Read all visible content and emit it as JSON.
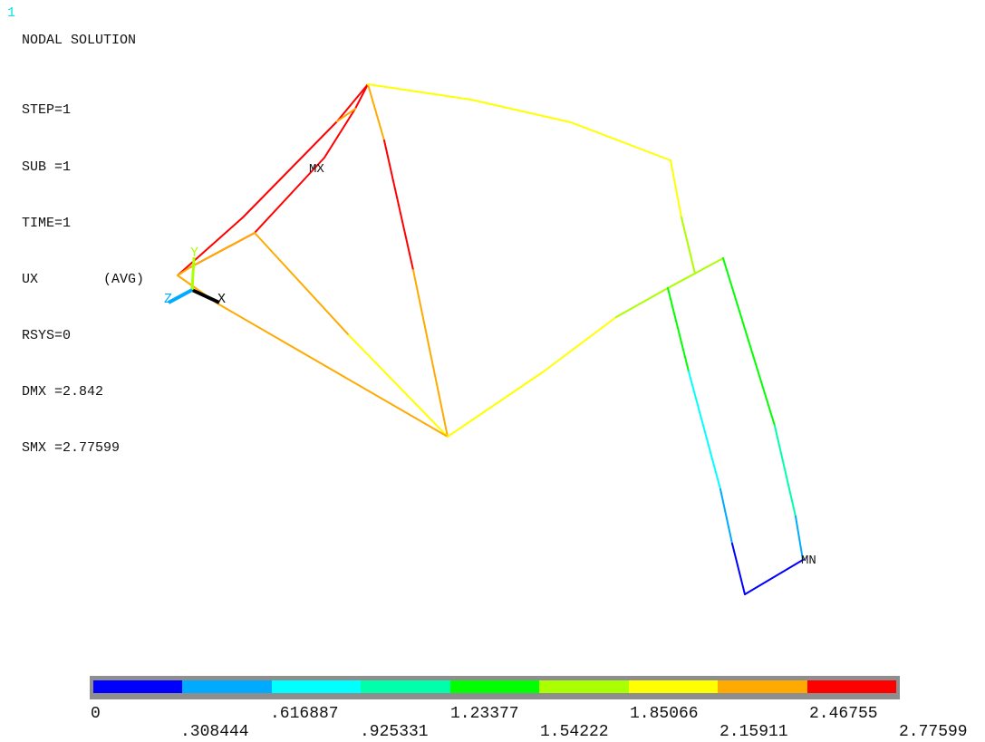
{
  "window_number": "1",
  "title": "NODAL SOLUTION",
  "info_lines": [
    "STEP=1",
    "SUB =1",
    "TIME=1",
    "UX        (AVG)",
    "RSYS=0",
    "DMX =2.842",
    "SMX =2.77599"
  ],
  "labels": {
    "max": "MX",
    "min": "MN",
    "axis_x": "X",
    "axis_y": "Y",
    "axis_z": "Z"
  },
  "legend": {
    "colors": [
      "#0000ff",
      "#00aaff",
      "#00ffff",
      "#00ffaa",
      "#00ff00",
      "#aaff00",
      "#ffff00",
      "#ffaa00",
      "#ff0000"
    ],
    "top_labels": [
      "0",
      ".616887",
      "1.23377",
      "1.85066",
      "2.46755"
    ],
    "bottom_labels": [
      ".308444",
      ".925331",
      "1.54222",
      "2.15911",
      "2.77599"
    ]
  },
  "colors": {
    "red": "#ff0000",
    "orange": "#ffaa00",
    "yellow": "#ffff00",
    "lime": "#aaff00",
    "green": "#00ff00",
    "aqua": "#00ffaa",
    "cyan": "#00ffff",
    "sky": "#00aaff",
    "blue": "#0000ff",
    "triad_x": "#000000",
    "triad_y": "#aaff00",
    "triad_z": "#00aaff"
  }
}
